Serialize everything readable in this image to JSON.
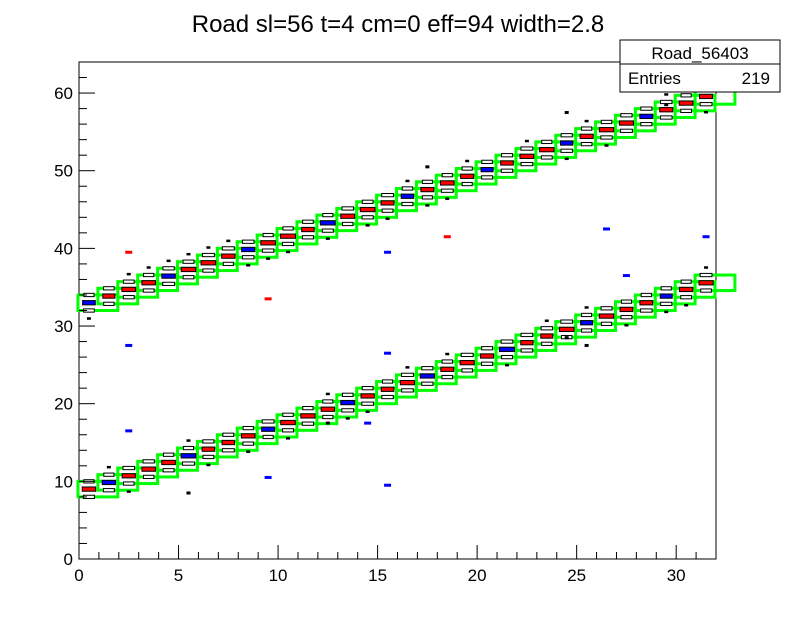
{
  "chart_data": {
    "type": "heatmap",
    "title": "Road sl=56 t=4 cm=0 eff=94 width=2.8",
    "xlabel": "",
    "ylabel": "",
    "xlim": [
      0,
      32
    ],
    "ylim": [
      0,
      64
    ],
    "x_ticks": [
      "0",
      "5",
      "10",
      "15",
      "20",
      "25",
      "30"
    ],
    "y_ticks": [
      "0",
      "10",
      "20",
      "30",
      "40",
      "50",
      "60"
    ],
    "stats_box": {
      "name": "Road_56403",
      "entries_label": "Entries",
      "entries_value": "219"
    },
    "tracks": [
      {
        "name": "",
        "y_start": 9.0,
        "slope": 0.857
      },
      {
        "name": "",
        "y_start": 33.0,
        "slope": 0.857
      }
    ],
    "isolated_hits": [
      {
        "x": 2.5,
        "y": 39.5,
        "color": "red"
      },
      {
        "x": 9.5,
        "y": 33.5,
        "color": "red"
      },
      {
        "x": 18.5,
        "y": 41.5,
        "color": "red"
      },
      {
        "x": 2.5,
        "y": 27.5,
        "color": "blue"
      },
      {
        "x": 2.5,
        "y": 16.5,
        "color": "blue"
      },
      {
        "x": 9.5,
        "y": 10.5,
        "color": "blue"
      },
      {
        "x": 15.5,
        "y": 39.5,
        "color": "blue"
      },
      {
        "x": 15.5,
        "y": 26.5,
        "color": "blue"
      },
      {
        "x": 15.5,
        "y": 9.5,
        "color": "blue"
      },
      {
        "x": 26.5,
        "y": 42.5,
        "color": "blue"
      },
      {
        "x": 27.5,
        "y": 36.5,
        "color": "blue"
      },
      {
        "x": 31.5,
        "y": 41.5,
        "color": "blue"
      },
      {
        "x": 14.5,
        "y": 17.5,
        "color": "blue"
      },
      {
        "x": 24.5,
        "y": 28.5,
        "color": "black"
      },
      {
        "x": 25.5,
        "y": 27.5,
        "color": "black"
      },
      {
        "x": 29.5,
        "y": 58.5,
        "color": "black"
      },
      {
        "x": 24.5,
        "y": 57.5,
        "color": "black"
      },
      {
        "x": 17.5,
        "y": 50.5,
        "color": "black"
      },
      {
        "x": 12.5,
        "y": 17.5,
        "color": "black"
      },
      {
        "x": 5.5,
        "y": 8.5,
        "color": "black"
      }
    ],
    "colors": {
      "road_box": "#00ff00",
      "hit_red": "#ff0000",
      "hit_blue": "#0000ff",
      "hit_outline": "#000000",
      "frame": "#000000"
    }
  }
}
